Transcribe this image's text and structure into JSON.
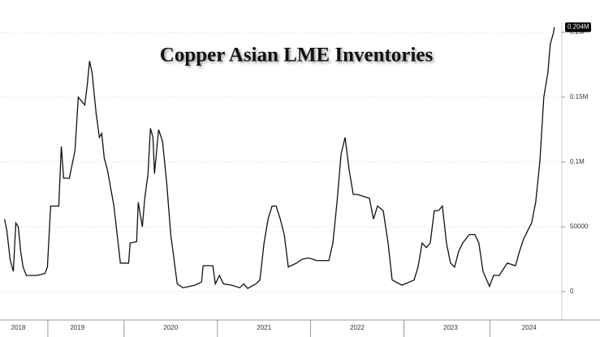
{
  "chart_data": {
    "type": "line",
    "title": "Copper Asian LME Inventories",
    "x": [
      2018.694,
      2018.721,
      2018.755,
      2018.79,
      2018.817,
      2018.843,
      2018.869,
      2018.895,
      2018.93,
      2019.044,
      2019.131,
      2019.157,
      2019.192,
      2019.279,
      2019.306,
      2019.332,
      2019.393,
      2019.454,
      2019.489,
      2019.524,
      2019.559,
      2019.585,
      2019.611,
      2019.638,
      2019.681,
      2019.716,
      2019.742,
      2019.769,
      2019.803,
      2019.873,
      2019.943,
      2020.031,
      2020.048,
      2020.118,
      2020.135,
      2020.179,
      2020.205,
      2020.24,
      2020.266,
      2020.293,
      2020.31,
      2020.354,
      2020.397,
      2020.441,
      2020.485,
      2020.555,
      2020.616,
      2020.747,
      2020.817,
      2020.834,
      2020.939,
      2020.965,
      2021.009,
      2021.052,
      2021.14,
      2021.227,
      2021.271,
      2021.314,
      2021.402,
      2021.445,
      2021.489,
      2021.533,
      2021.576,
      2021.62,
      2021.664,
      2021.707,
      2021.751,
      2021.838,
      2021.9,
      2021.969,
      2022.057,
      2022.188,
      2022.231,
      2022.275,
      2022.319,
      2022.362,
      2022.406,
      2022.45,
      2022.493,
      2022.624,
      2022.668,
      2022.712,
      2022.773,
      2022.825,
      2022.869,
      2022.974,
      2023.105,
      2023.148,
      2023.192,
      2023.236,
      2023.279,
      2023.323,
      2023.367,
      2023.41,
      2023.454,
      2023.498,
      2023.541,
      2023.585,
      2023.629,
      2023.699,
      2023.76,
      2023.803,
      2023.847,
      2023.917,
      2023.961,
      2024.022,
      2024.109,
      2024.197,
      2024.24,
      2024.284,
      2024.328,
      2024.371,
      2024.415,
      2024.459,
      2024.502,
      2024.546,
      2024.572,
      2024.607,
      2024.616
    ],
    "series": [
      {
        "color": "#111111",
        "values": [
          56000,
          47000,
          25000,
          15600,
          53000,
          50000,
          31000,
          19000,
          12500,
          12500,
          14000,
          19000,
          66000,
          66000,
          112000,
          87500,
          87500,
          109000,
          150000,
          147000,
          144000,
          159000,
          178000,
          169000,
          137500,
          119000,
          122000,
          103000,
          94000,
          66000,
          22000,
          22000,
          37500,
          38500,
          69000,
          50000,
          72000,
          91000,
          126000,
          119000,
          91000,
          125000,
          116000,
          84000,
          44000,
          6000,
          3000,
          5000,
          7500,
          20000,
          20000,
          6000,
          12500,
          6000,
          5000,
          3000,
          6000,
          2500,
          6000,
          9000,
          37500,
          56000,
          66000,
          66000,
          56000,
          44000,
          19000,
          22000,
          25000,
          26000,
          24000,
          24000,
          37500,
          69000,
          106000,
          119000,
          94000,
          75000,
          75000,
          72000,
          56000,
          66000,
          62500,
          37500,
          9000,
          5000,
          9000,
          19000,
          37500,
          34000,
          37500,
          62500,
          62500,
          66000,
          37500,
          22000,
          19000,
          31000,
          37500,
          44000,
          44000,
          37500,
          15600,
          4000,
          12500,
          12500,
          22000,
          20000,
          31000,
          40500,
          47000,
          53000,
          69000,
          100000,
          150000,
          169000,
          191000,
          200000,
          204000
        ]
      }
    ],
    "last_value": {
      "value": 204000,
      "label": "0.204M"
    },
    "xlim": [
      2018.69,
      2024.67
    ],
    "xticks": [
      {
        "value": 2018.843,
        "label": "2018"
      },
      {
        "value": 2019.48,
        "label": "2019"
      },
      {
        "value": 2020.485,
        "label": "2020"
      },
      {
        "value": 2021.489,
        "label": "2021"
      },
      {
        "value": 2022.493,
        "label": "2022"
      },
      {
        "value": 2023.498,
        "label": "2023"
      },
      {
        "value": 2024.345,
        "label": "2024"
      }
    ],
    "ylim": [
      -7500,
      207500
    ],
    "yticks": [
      0,
      50000,
      {
        "value": 100000,
        "label": "0.1M"
      },
      {
        "value": 150000,
        "label": "0.15M"
      },
      {
        "value": 200000,
        "label": "0.2M"
      }
    ],
    "grid": true
  }
}
